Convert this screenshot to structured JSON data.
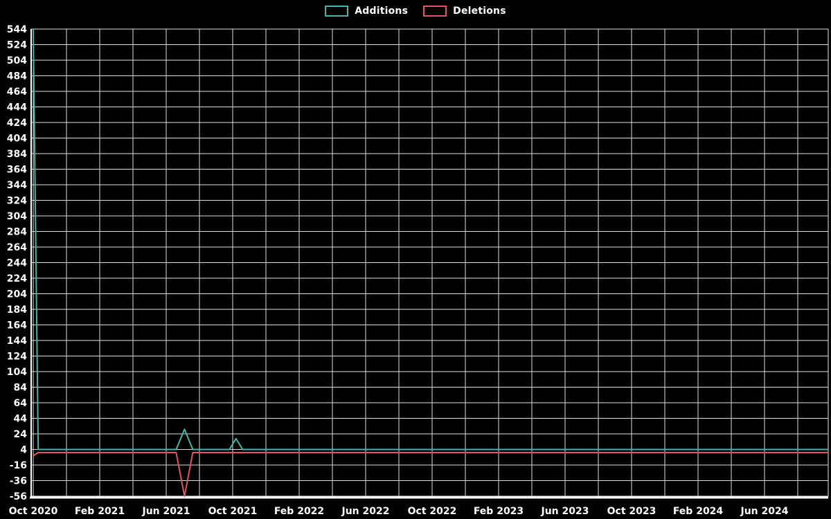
{
  "legend": {
    "items": [
      {
        "label": "Additions",
        "color": "#45b5aa"
      },
      {
        "label": "Deletions",
        "color": "#e25563"
      }
    ]
  },
  "chart_data": {
    "type": "line",
    "title": "",
    "xlabel": "",
    "ylabel": "",
    "background": "#000000",
    "grid": true,
    "grid_color": "#e0e0e0",
    "axis_color": "#ffffff",
    "text_color": "#ffffff",
    "legend_position": "top-center",
    "ylim": [
      -56,
      544
    ],
    "y_tick_step": 20,
    "y_tick_labels": [
      "544",
      "524",
      "504",
      "484",
      "464",
      "444",
      "424",
      "404",
      "384",
      "364",
      "344",
      "324",
      "304",
      "284",
      "264",
      "244",
      "224",
      "204",
      "184",
      "164",
      "144",
      "124",
      "104",
      "84",
      "64",
      "44",
      "24",
      "4",
      "-16",
      "-36",
      "-56"
    ],
    "x_tick_labels": [
      "Oct 2020",
      "Feb 2021",
      "Jun 2021",
      "Oct 2021",
      "Feb 2022",
      "Jun 2022",
      "Oct 2022",
      "Feb 2023",
      "Jun 2023",
      "Oct 2023",
      "Feb 2024",
      "Jun 2024"
    ],
    "x_tick_months": [
      0,
      4,
      8,
      12,
      16,
      20,
      24,
      28,
      32,
      36,
      40,
      44
    ],
    "x_range_months": [
      0,
      47.8
    ],
    "x_grid_step_months": 2,
    "series": [
      {
        "name": "Additions",
        "color": "#45b5aa",
        "points": [
          [
            0,
            544
          ],
          [
            0.3,
            4
          ],
          [
            8.6,
            4
          ],
          [
            9.1,
            30
          ],
          [
            9.6,
            4
          ],
          [
            11.8,
            4
          ],
          [
            12.2,
            18
          ],
          [
            12.6,
            4
          ],
          [
            47.8,
            4
          ]
        ]
      },
      {
        "name": "Deletions",
        "color": "#e25563",
        "points": [
          [
            0,
            -4
          ],
          [
            0.3,
            0
          ],
          [
            8.6,
            0
          ],
          [
            9.1,
            -56
          ],
          [
            9.6,
            0
          ],
          [
            47.8,
            0
          ]
        ]
      }
    ]
  }
}
